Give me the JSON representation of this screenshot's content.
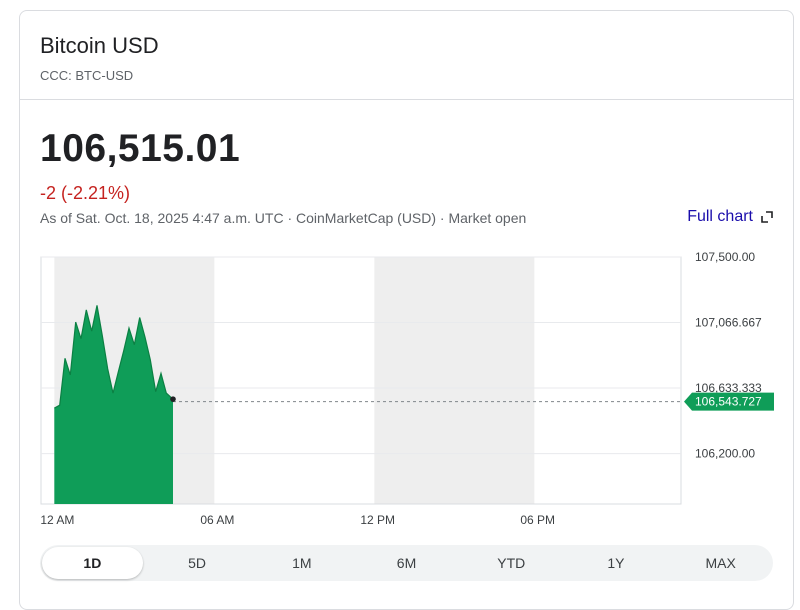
{
  "header": {
    "title": "Bitcoin USD",
    "ticker": "CCC: BTC-USD"
  },
  "quote": {
    "price": "106,515.01",
    "change": "-2 (-2.21%)",
    "as_of": "As of Sat. Oct. 18, 2025 4:47 a.m. UTC · CoinMarketCap (USD) · Market open",
    "full_chart_label": "Full chart"
  },
  "ranges": [
    "1D",
    "5D",
    "1M",
    "6M",
    "YTD",
    "1Y",
    "MAX"
  ],
  "active_range": "1D",
  "colors": {
    "series": "#0f9d58",
    "negative": "#c5221f",
    "link": "#1a0dab",
    "shade": "#eeeeee"
  },
  "chart_data": {
    "type": "area",
    "x_tick_labels": [
      "12 AM",
      "06 AM",
      "12 PM",
      "06 PM"
    ],
    "y_tick_labels": [
      "107,500.00",
      "107,066.667",
      "106,633.333",
      "106,200.00"
    ],
    "y_ticks": [
      107500,
      107066.667,
      106633.333,
      106200
    ],
    "ylim": [
      105866.667,
      107500
    ],
    "xlim_hours": [
      -0.5,
      23.5
    ],
    "current_value": 106543.727,
    "current_label": "106,543.727",
    "shaded_bands_hours": [
      [
        0,
        6
      ],
      [
        12,
        18
      ]
    ],
    "series": [
      {
        "x_hours": [
          0,
          0.2,
          0.4,
          0.6,
          0.8,
          1.0,
          1.2,
          1.4,
          1.6,
          1.8,
          2.0,
          2.2,
          2.4,
          2.6,
          2.8,
          3.0,
          3.2,
          3.4,
          3.6,
          3.8,
          4.0,
          4.2,
          4.45
        ],
        "values": [
          106500,
          106520,
          106830,
          106720,
          107070,
          106960,
          107150,
          107010,
          107180,
          106980,
          106760,
          106600,
          106740,
          106880,
          107030,
          106920,
          107100,
          106970,
          106820,
          106610,
          106730,
          106600,
          106560
        ]
      }
    ]
  }
}
